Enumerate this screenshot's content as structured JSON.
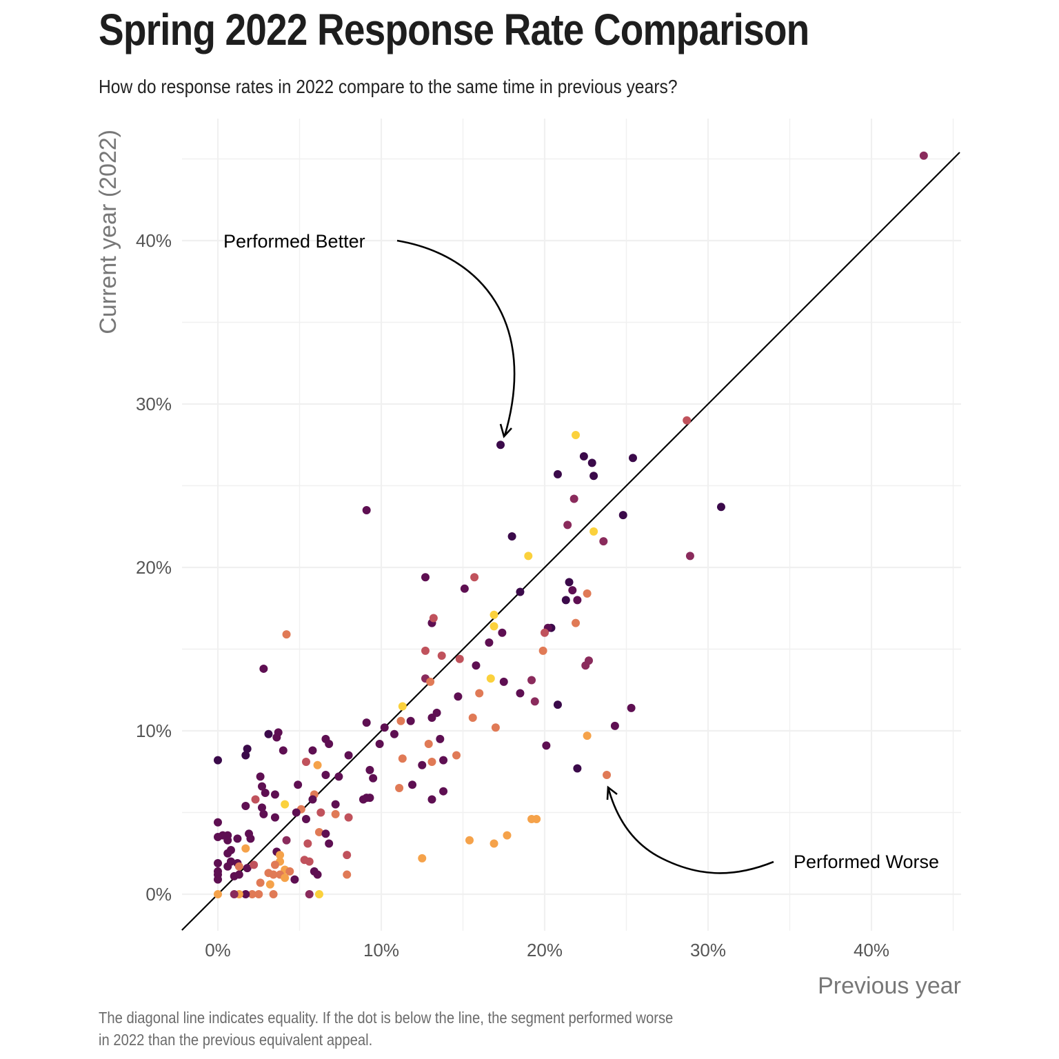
{
  "title": "Spring 2022 Response Rate Comparison",
  "subtitle": "How do response rates in 2022 compare to the same time in previous years?",
  "caption_line1": "The diagonal line indicates equality. If the dot is below the line, the segment performed worse",
  "caption_line2": "in 2022 than the previous equivalent appeal.",
  "palette": [
    "#3b0a4a",
    "#5e0f52",
    "#8a2b5c",
    "#c0525c",
    "#e07a56",
    "#f5a24a",
    "#fbd13c"
  ],
  "chart_data": {
    "type": "scatter",
    "title": "Spring 2022 Response Rate Comparison",
    "xlabel": "Previous year",
    "ylabel": "Current year (2022)",
    "xlim": [
      -2.2,
      45.5
    ],
    "ylim": [
      -2.2,
      45.5
    ],
    "x_ticks": [
      0,
      10,
      20,
      30,
      40
    ],
    "x_tick_labels": [
      "0%",
      "10%",
      "20%",
      "30%",
      "40%"
    ],
    "y_ticks": [
      0,
      10,
      20,
      30,
      40
    ],
    "y_tick_labels": [
      "0%",
      "10%",
      "20%",
      "30%",
      "40%"
    ],
    "grid": true,
    "legend": "none",
    "reference_line": {
      "type": "diagonal",
      "label": "equality",
      "from": [
        -2.2,
        -2.2
      ],
      "to": [
        45.4,
        45.4
      ]
    },
    "annotations": [
      {
        "text": "Performed Better",
        "target": [
          17.3,
          27.5
        ]
      },
      {
        "text": "Performed Worse",
        "target": [
          23.8,
          7.3
        ]
      }
    ],
    "points": [
      [
        43.2,
        45.2,
        2
      ],
      [
        28.7,
        29.0,
        3
      ],
      [
        28.9,
        20.7,
        2
      ],
      [
        30.8,
        23.7,
        0
      ],
      [
        25.4,
        26.7,
        0
      ],
      [
        24.8,
        23.2,
        0
      ],
      [
        25.3,
        11.4,
        1
      ],
      [
        24.3,
        10.3,
        1
      ],
      [
        23.8,
        7.3,
        4
      ],
      [
        23.6,
        21.6,
        2
      ],
      [
        23.0,
        25.6,
        0
      ],
      [
        22.9,
        26.4,
        0
      ],
      [
        22.4,
        26.8,
        0
      ],
      [
        21.9,
        28.1,
        6
      ],
      [
        23.0,
        22.2,
        6
      ],
      [
        21.8,
        24.2,
        2
      ],
      [
        21.4,
        22.6,
        2
      ],
      [
        20.8,
        25.7,
        0
      ],
      [
        21.5,
        19.1,
        0
      ],
      [
        21.7,
        18.6,
        1
      ],
      [
        21.3,
        18.0,
        0
      ],
      [
        22.0,
        18.0,
        1
      ],
      [
        22.6,
        18.4,
        4
      ],
      [
        21.9,
        16.6,
        4
      ],
      [
        20.4,
        16.3,
        0
      ],
      [
        20.2,
        16.3,
        1
      ],
      [
        20.0,
        16.0,
        3
      ],
      [
        19.9,
        14.9,
        4
      ],
      [
        22.7,
        14.3,
        2
      ],
      [
        22.5,
        14.0,
        2
      ],
      [
        22.6,
        9.7,
        5
      ],
      [
        20.8,
        11.6,
        0
      ],
      [
        20.1,
        9.1,
        1
      ],
      [
        22.0,
        7.7,
        0
      ],
      [
        19.0,
        20.7,
        6
      ],
      [
        18.0,
        21.9,
        0
      ],
      [
        18.5,
        18.5,
        0
      ],
      [
        19.2,
        13.1,
        2
      ],
      [
        19.4,
        11.8,
        2
      ],
      [
        18.5,
        12.3,
        1
      ],
      [
        17.3,
        27.5,
        0
      ],
      [
        16.9,
        17.1,
        6
      ],
      [
        16.9,
        16.4,
        6
      ],
      [
        17.4,
        16.0,
        1
      ],
      [
        16.6,
        15.4,
        1
      ],
      [
        16.7,
        13.2,
        6
      ],
      [
        17.5,
        13.0,
        1
      ],
      [
        17.0,
        10.2,
        4
      ],
      [
        19.2,
        4.6,
        5
      ],
      [
        19.5,
        4.6,
        5
      ],
      [
        17.7,
        3.6,
        5
      ],
      [
        16.9,
        3.1,
        5
      ],
      [
        15.4,
        3.3,
        5
      ],
      [
        12.5,
        2.2,
        5
      ],
      [
        15.1,
        18.7,
        1
      ],
      [
        15.7,
        19.4,
        3
      ],
      [
        15.8,
        14.0,
        1
      ],
      [
        16.0,
        12.3,
        4
      ],
      [
        14.8,
        14.4,
        3
      ],
      [
        14.7,
        12.1,
        1
      ],
      [
        15.6,
        10.8,
        4
      ],
      [
        14.6,
        8.5,
        4
      ],
      [
        13.7,
        14.6,
        3
      ],
      [
        13.1,
        16.6,
        1
      ],
      [
        13.2,
        16.9,
        3
      ],
      [
        12.7,
        19.4,
        1
      ],
      [
        12.7,
        14.9,
        3
      ],
      [
        12.7,
        13.2,
        2
      ],
      [
        13.0,
        13.0,
        4
      ],
      [
        13.4,
        11.1,
        1
      ],
      [
        13.1,
        10.8,
        1
      ],
      [
        13.6,
        9.5,
        1
      ],
      [
        12.9,
        9.2,
        4
      ],
      [
        13.1,
        8.1,
        4
      ],
      [
        13.8,
        8.2,
        1
      ],
      [
        12.5,
        7.9,
        1
      ],
      [
        13.8,
        6.3,
        1
      ],
      [
        13.1,
        5.8,
        1
      ],
      [
        11.3,
        11.5,
        6
      ],
      [
        11.2,
        10.6,
        4
      ],
      [
        11.8,
        10.6,
        1
      ],
      [
        10.2,
        10.2,
        1
      ],
      [
        10.8,
        9.8,
        1
      ],
      [
        9.9,
        9.2,
        1
      ],
      [
        11.3,
        8.3,
        4
      ],
      [
        11.9,
        6.7,
        1
      ],
      [
        11.1,
        6.5,
        4
      ],
      [
        9.1,
        23.5,
        1
      ],
      [
        9.1,
        10.5,
        1
      ],
      [
        8.0,
        8.5,
        1
      ],
      [
        9.3,
        7.6,
        1
      ],
      [
        9.5,
        7.1,
        1
      ],
      [
        9.1,
        5.9,
        1
      ],
      [
        8.9,
        5.8,
        1
      ],
      [
        9.3,
        5.9,
        1
      ],
      [
        6.6,
        9.5,
        1
      ],
      [
        6.8,
        9.2,
        1
      ],
      [
        5.8,
        8.8,
        1
      ],
      [
        5.4,
        8.1,
        3
      ],
      [
        6.1,
        7.9,
        5
      ],
      [
        6.6,
        7.3,
        1
      ],
      [
        7.4,
        7.2,
        1
      ],
      [
        7.2,
        5.5,
        1
      ],
      [
        6.3,
        5.0,
        3
      ],
      [
        7.2,
        4.9,
        4
      ],
      [
        8.0,
        4.7,
        3
      ],
      [
        5.9,
        6.1,
        4
      ],
      [
        5.8,
        5.8,
        1
      ],
      [
        4.9,
        6.7,
        1
      ],
      [
        5.1,
        5.2,
        4
      ],
      [
        4.8,
        5.0,
        1
      ],
      [
        5.4,
        4.6,
        1
      ],
      [
        4.1,
        5.5,
        6
      ],
      [
        6.2,
        3.8,
        4
      ],
      [
        6.6,
        3.7,
        1
      ],
      [
        6.8,
        3.1,
        1
      ],
      [
        5.5,
        3.1,
        3
      ],
      [
        7.9,
        2.4,
        3
      ],
      [
        7.9,
        1.2,
        4
      ],
      [
        5.3,
        2.1,
        3
      ],
      [
        5.6,
        2.0,
        3
      ],
      [
        5.9,
        1.4,
        1
      ],
      [
        6.1,
        1.2,
        1
      ],
      [
        6.2,
        0.0,
        6
      ],
      [
        5.6,
        0.0,
        2
      ],
      [
        4.2,
        15.9,
        4
      ],
      [
        2.8,
        13.8,
        1
      ],
      [
        3.1,
        9.8,
        0
      ],
      [
        3.7,
        9.9,
        1
      ],
      [
        3.6,
        9.6,
        1
      ],
      [
        4.0,
        8.8,
        1
      ],
      [
        1.8,
        8.9,
        0
      ],
      [
        1.7,
        8.5,
        0
      ],
      [
        0.0,
        8.2,
        0
      ],
      [
        2.6,
        7.2,
        1
      ],
      [
        2.7,
        6.6,
        1
      ],
      [
        2.9,
        6.2,
        1
      ],
      [
        3.5,
        6.1,
        1
      ],
      [
        2.3,
        5.8,
        3
      ],
      [
        1.7,
        5.4,
        1
      ],
      [
        2.7,
        5.3,
        1
      ],
      [
        2.8,
        4.9,
        1
      ],
      [
        3.5,
        4.7,
        1
      ],
      [
        4.2,
        3.3,
        2
      ],
      [
        3.6,
        2.6,
        1
      ],
      [
        3.8,
        2.4,
        5
      ],
      [
        3.8,
        2.0,
        5
      ],
      [
        3.5,
        1.8,
        4
      ],
      [
        4.1,
        1.5,
        5
      ],
      [
        4.4,
        1.4,
        4
      ],
      [
        3.1,
        1.3,
        4
      ],
      [
        3.4,
        1.2,
        4
      ],
      [
        3.8,
        1.2,
        4
      ],
      [
        4.1,
        1.0,
        5
      ],
      [
        4.7,
        0.9,
        1
      ],
      [
        2.6,
        0.7,
        4
      ],
      [
        3.2,
        0.6,
        5
      ],
      [
        3.4,
        0.0,
        4
      ],
      [
        2.5,
        0.0,
        4
      ],
      [
        2.1,
        0.0,
        4
      ],
      [
        1.7,
        0.0,
        1
      ],
      [
        1.3,
        0.0,
        5
      ],
      [
        1.0,
        0.0,
        2
      ],
      [
        0.0,
        0.0,
        5
      ],
      [
        1.9,
        3.7,
        1
      ],
      [
        2.0,
        3.4,
        1
      ],
      [
        1.2,
        3.4,
        1
      ],
      [
        0.6,
        3.6,
        1
      ],
      [
        0.3,
        3.6,
        1
      ],
      [
        0.0,
        3.5,
        1
      ],
      [
        0.6,
        3.3,
        1
      ],
      [
        1.7,
        2.8,
        5
      ],
      [
        0.8,
        2.7,
        1
      ],
      [
        0.6,
        2.5,
        1
      ],
      [
        0.8,
        2.0,
        1
      ],
      [
        0.6,
        1.7,
        1
      ],
      [
        0.0,
        4.4,
        1
      ],
      [
        0.0,
        1.9,
        1
      ],
      [
        0.0,
        1.4,
        1
      ],
      [
        0.0,
        1.2,
        1
      ],
      [
        0.0,
        0.9,
        1
      ],
      [
        1.2,
        1.9,
        1
      ],
      [
        1.3,
        1.7,
        4
      ],
      [
        1.8,
        1.6,
        1
      ],
      [
        2.2,
        1.8,
        3
      ],
      [
        1.0,
        1.1,
        1
      ],
      [
        1.3,
        1.2,
        1
      ]
    ],
    "point_encoding": [
      "x_previous_year_pct",
      "y_current_year_pct",
      "color_index"
    ]
  }
}
